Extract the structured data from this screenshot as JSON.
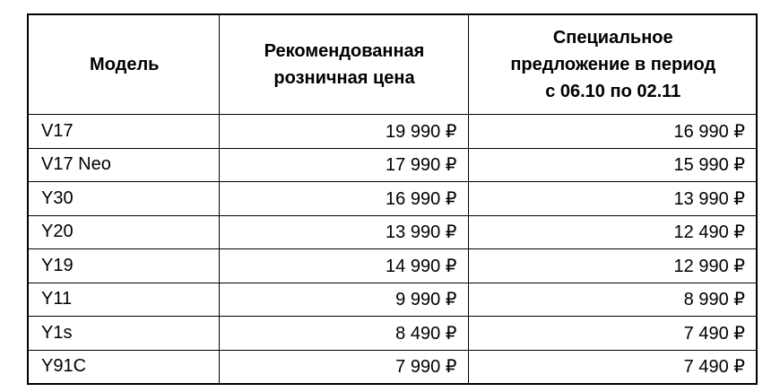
{
  "table": {
    "header": [
      [
        "Модель"
      ],
      [
        "Рекомендованная",
        "розничная цена"
      ],
      [
        "Специальное",
        "предложение в период",
        "с 06.10 по 02.11"
      ]
    ],
    "rows": [
      [
        "V17",
        "19 990 ₽",
        "16 990 ₽"
      ],
      [
        "V17 Neo",
        "17 990 ₽",
        "15 990 ₽"
      ],
      [
        "Y30",
        "16 990 ₽",
        "13 990 ₽"
      ],
      [
        "Y20",
        "13 990 ₽",
        "12 490 ₽"
      ],
      [
        "Y19",
        "14 990 ₽",
        "12 990 ₽"
      ],
      [
        "Y11",
        "9 990 ₽",
        "8 990 ₽"
      ],
      [
        "Y1s",
        "8 490 ₽",
        "7 490 ₽"
      ],
      [
        "Y91C",
        "7 990 ₽",
        "7 490 ₽"
      ]
    ]
  }
}
